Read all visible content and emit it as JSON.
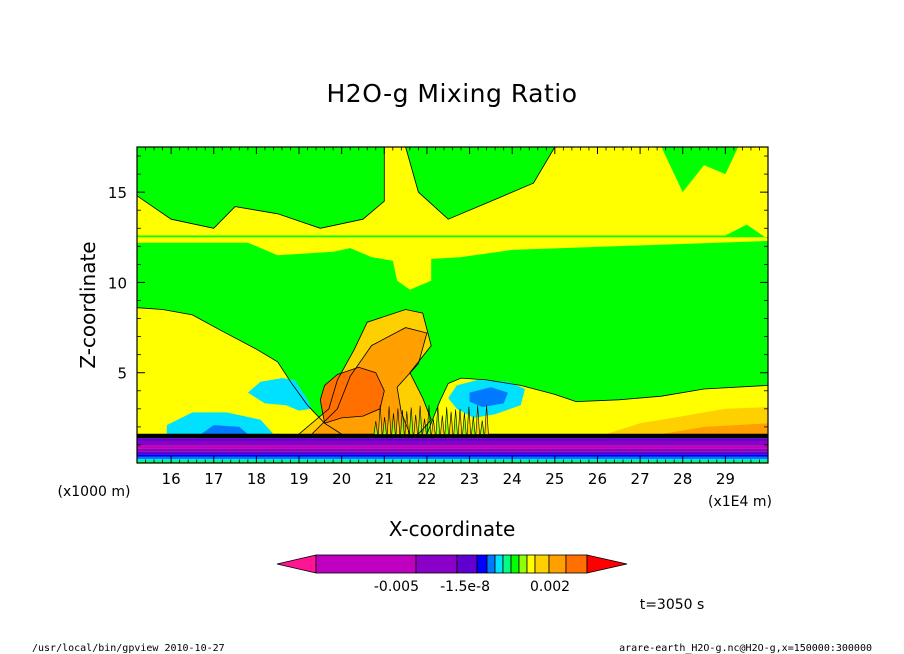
{
  "chart_data": {
    "type": "heatmap",
    "title": "H2O-g Mixing Ratio",
    "xlabel": "X-coordinate",
    "ylabel": "Z-coordinate",
    "x_unit_label": "(x1E4 m)",
    "y_unit_label": "(x1000 m)",
    "xlim": [
      15.2,
      30.0
    ],
    "ylim": [
      0.0,
      17.5
    ],
    "x_ticks": [
      16,
      17,
      18,
      19,
      20,
      21,
      22,
      23,
      24,
      25,
      26,
      27,
      28,
      29
    ],
    "y_ticks": [
      5,
      10,
      15
    ],
    "colorbar": {
      "colors": [
        "#ff1493",
        "#c000c0",
        "#8a00c8",
        "#6000d0",
        "#0000ff",
        "#0078ff",
        "#00e0ff",
        "#00ff80",
        "#00ff00",
        "#90ff00",
        "#ffff00",
        "#ffd000",
        "#ffa000",
        "#ff7000",
        "#ff0000"
      ],
      "tick_labels": [
        "-0.005",
        "-1.5e-8",
        "0.002"
      ]
    },
    "time_label": "t=3050 s",
    "regions": [
      {
        "color": "#ffff00",
        "points": [
          [
            15.2,
            0
          ],
          [
            30,
            0
          ],
          [
            30,
            17.5
          ],
          [
            15.2,
            17.5
          ]
        ]
      },
      {
        "color": "#00ff00",
        "points": [
          [
            15.2,
            17.5
          ],
          [
            15.2,
            14.8
          ],
          [
            16.0,
            13.5
          ],
          [
            17.0,
            13.0
          ],
          [
            17.5,
            14.2
          ],
          [
            18.5,
            13.8
          ],
          [
            19.5,
            13.0
          ],
          [
            20.5,
            13.5
          ],
          [
            21.0,
            14.5
          ],
          [
            21.0,
            17.5
          ]
        ]
      },
      {
        "color": "#00ff00",
        "points": [
          [
            21.5,
            17.5
          ],
          [
            21.8,
            15.0
          ],
          [
            22.5,
            13.5
          ],
          [
            23.5,
            14.5
          ],
          [
            24.5,
            15.5
          ],
          [
            25.0,
            17.5
          ]
        ]
      },
      {
        "color": "#00ff00",
        "points": [
          [
            27.5,
            17.5
          ],
          [
            28.0,
            15.0
          ],
          [
            28.5,
            16.5
          ],
          [
            29.0,
            16.0
          ],
          [
            29.3,
            17.5
          ]
        ]
      },
      {
        "color": "#00ff00",
        "points": [
          [
            15.2,
            12.5
          ],
          [
            30,
            12.5
          ],
          [
            30,
            12.4
          ],
          [
            29.5,
            13.2
          ],
          [
            29.0,
            12.6
          ],
          [
            15.2,
            12.6
          ]
        ]
      },
      {
        "color": "#00ff00",
        "points": [
          [
            15.2,
            12.2
          ],
          [
            17.8,
            12.2
          ],
          [
            18.5,
            11.5
          ],
          [
            19.8,
            11.7
          ],
          [
            20.2,
            11.9
          ],
          [
            20.7,
            11.4
          ],
          [
            21.2,
            11.2
          ],
          [
            21.3,
            10.1
          ],
          [
            21.6,
            9.6
          ],
          [
            22.1,
            10.1
          ],
          [
            22.1,
            11.3
          ],
          [
            22.8,
            11.4
          ],
          [
            24.0,
            11.8
          ],
          [
            30,
            12.3
          ],
          [
            30,
            4.3
          ],
          [
            28.5,
            4.1
          ],
          [
            27.5,
            3.7
          ],
          [
            26.5,
            3.5
          ],
          [
            25.5,
            3.4
          ],
          [
            25.0,
            3.8
          ],
          [
            24.2,
            4.3
          ],
          [
            23.4,
            4.6
          ],
          [
            22.8,
            4.7
          ],
          [
            22.5,
            4.4
          ],
          [
            22.3,
            3.4
          ],
          [
            22.0,
            1.6
          ],
          [
            20.0,
            1.6
          ],
          [
            19.6,
            2.2
          ],
          [
            19.2,
            3.2
          ],
          [
            18.8,
            4.5
          ],
          [
            18.5,
            5.6
          ],
          [
            18.0,
            6.3
          ],
          [
            17.2,
            7.3
          ],
          [
            16.5,
            8.2
          ],
          [
            15.8,
            8.5
          ],
          [
            15.2,
            8.6
          ]
        ]
      },
      {
        "color": "#ffff00",
        "points": [
          [
            15.2,
            3.8
          ],
          [
            16.2,
            3.9
          ],
          [
            16.8,
            3.4
          ],
          [
            16.6,
            3.1
          ],
          [
            15.9,
            3.0
          ],
          [
            15.2,
            3.0
          ]
        ]
      },
      {
        "color": "#ffff00",
        "points": [
          [
            24.5,
            3.2
          ],
          [
            25.4,
            3.0
          ],
          [
            26.5,
            3.2
          ],
          [
            27.5,
            3.5
          ],
          [
            28.5,
            3.9
          ],
          [
            30,
            4.1
          ],
          [
            30,
            1.6
          ],
          [
            24.2,
            1.6
          ]
        ]
      },
      {
        "color": "#ffff00",
        "points": [
          [
            18.5,
            1.6
          ],
          [
            19.8,
            1.6
          ],
          [
            19.4,
            2.2
          ],
          [
            18.9,
            1.9
          ]
        ]
      },
      {
        "color": "#ffd000",
        "points": [
          [
            19.0,
            1.6
          ],
          [
            19.7,
            3.0
          ],
          [
            19.9,
            4.6
          ],
          [
            20.3,
            6.3
          ],
          [
            20.6,
            7.8
          ],
          [
            21.5,
            8.5
          ],
          [
            21.9,
            8.3
          ],
          [
            22.1,
            6.5
          ],
          [
            21.6,
            5.0
          ],
          [
            21.9,
            3.6
          ],
          [
            22.1,
            2.4
          ],
          [
            21.8,
            1.6
          ]
        ]
      },
      {
        "color": "#ffd000",
        "points": [
          [
            26.2,
            1.6
          ],
          [
            27.0,
            2.2
          ],
          [
            28.0,
            2.6
          ],
          [
            29.0,
            3.0
          ],
          [
            30,
            3.1
          ],
          [
            30,
            1.6
          ]
        ]
      },
      {
        "color": "#ffa000",
        "points": [
          [
            19.3,
            1.6
          ],
          [
            19.9,
            3.0
          ],
          [
            20.2,
            4.8
          ],
          [
            20.7,
            6.5
          ],
          [
            21.5,
            7.5
          ],
          [
            22.0,
            7.2
          ],
          [
            21.8,
            5.5
          ],
          [
            21.3,
            4.2
          ],
          [
            21.4,
            2.8
          ],
          [
            21.6,
            1.6
          ]
        ]
      },
      {
        "color": "#ffa000",
        "points": [
          [
            27.5,
            1.6
          ],
          [
            28.5,
            2.0
          ],
          [
            30,
            2.2
          ],
          [
            30,
            1.6
          ]
        ]
      },
      {
        "color": "#ff7000",
        "points": [
          [
            19.6,
            2.2
          ],
          [
            20.0,
            2.5
          ],
          [
            20.5,
            2.6
          ],
          [
            20.9,
            3.0
          ],
          [
            21.0,
            4.0
          ],
          [
            20.8,
            5.0
          ],
          [
            20.4,
            5.3
          ],
          [
            19.9,
            4.9
          ],
          [
            19.6,
            4.3
          ],
          [
            19.5,
            3.5
          ]
        ]
      },
      {
        "color": "#00e0ff",
        "points": [
          [
            18.9,
            4.6
          ],
          [
            19.2,
            3.5
          ],
          [
            19.3,
            3.0
          ],
          [
            19.0,
            2.9
          ],
          [
            18.7,
            3.2
          ],
          [
            18.2,
            3.3
          ],
          [
            17.8,
            3.9
          ],
          [
            18.1,
            4.5
          ],
          [
            18.6,
            4.7
          ]
        ]
      },
      {
        "color": "#00e0ff",
        "points": [
          [
            22.7,
            4.3
          ],
          [
            23.2,
            4.6
          ],
          [
            23.9,
            4.5
          ],
          [
            24.3,
            4.1
          ],
          [
            24.2,
            3.2
          ],
          [
            23.6,
            2.7
          ],
          [
            23.1,
            2.5
          ],
          [
            22.7,
            3.0
          ],
          [
            22.5,
            3.6
          ]
        ]
      },
      {
        "color": "#0078ff",
        "points": [
          [
            23.0,
            3.9
          ],
          [
            23.5,
            4.2
          ],
          [
            23.9,
            3.9
          ],
          [
            23.8,
            3.3
          ],
          [
            23.3,
            3.1
          ],
          [
            23.0,
            3.4
          ]
        ]
      },
      {
        "color": "#00e0ff",
        "points": [
          [
            15.9,
            2.1
          ],
          [
            16.5,
            2.8
          ],
          [
            17.3,
            2.8
          ],
          [
            18.1,
            2.4
          ],
          [
            18.4,
            1.6
          ],
          [
            15.9,
            1.6
          ]
        ]
      },
      {
        "color": "#0078ff",
        "points": [
          [
            16.7,
            1.6
          ],
          [
            17.0,
            2.1
          ],
          [
            17.6,
            2.0
          ],
          [
            17.8,
            1.6
          ]
        ]
      }
    ],
    "bands": [
      {
        "y0": 1.38,
        "y1": 1.62,
        "color": "#000000"
      },
      {
        "y0": 1.22,
        "y1": 1.38,
        "color": "#6000d0"
      },
      {
        "y0": 0.95,
        "y1": 1.22,
        "color": "#8a00c8"
      },
      {
        "y0": 0.78,
        "y1": 0.95,
        "color": "#c000c0"
      },
      {
        "y0": 0.62,
        "y1": 0.78,
        "color": "#8a00c8"
      },
      {
        "y0": 0.48,
        "y1": 0.62,
        "color": "#6000d0"
      },
      {
        "y0": 0.34,
        "y1": 0.48,
        "color": "#0000ff"
      },
      {
        "y0": 0.22,
        "y1": 0.34,
        "color": "#0078ff"
      },
      {
        "y0": 0.1,
        "y1": 0.22,
        "color": "#00e0ff"
      },
      {
        "y0": 0.0,
        "y1": 0.1,
        "color": "#00ff00"
      }
    ],
    "contour_lines": [
      [
        [
          15.2,
          14.8
        ],
        [
          16.0,
          13.5
        ],
        [
          17.0,
          13.0
        ],
        [
          17.5,
          14.2
        ],
        [
          18.5,
          13.8
        ],
        [
          19.5,
          13.0
        ],
        [
          20.5,
          13.5
        ],
        [
          21.0,
          14.5
        ],
        [
          21.0,
          17.5
        ]
      ],
      [
        [
          21.5,
          17.5
        ],
        [
          21.8,
          15.0
        ],
        [
          22.5,
          13.5
        ],
        [
          23.5,
          14.5
        ],
        [
          24.5,
          15.5
        ],
        [
          25.0,
          17.5
        ]
      ],
      [
        [
          19.0,
          1.6
        ],
        [
          19.7,
          3.0
        ],
        [
          19.9,
          4.6
        ],
        [
          20.3,
          6.3
        ],
        [
          20.6,
          7.8
        ],
        [
          21.5,
          8.5
        ],
        [
          21.9,
          8.3
        ],
        [
          22.1,
          6.5
        ],
        [
          21.6,
          5.0
        ],
        [
          21.9,
          3.6
        ],
        [
          22.1,
          2.4
        ],
        [
          21.8,
          1.6
        ]
      ],
      [
        [
          19.3,
          1.6
        ],
        [
          19.9,
          3.0
        ],
        [
          20.2,
          4.8
        ],
        [
          20.7,
          6.5
        ],
        [
          21.5,
          7.5
        ],
        [
          22.0,
          7.2
        ],
        [
          21.8,
          5.5
        ],
        [
          21.3,
          4.2
        ],
        [
          21.4,
          2.8
        ],
        [
          21.6,
          1.6
        ]
      ],
      [
        [
          19.6,
          2.2
        ],
        [
          20.0,
          2.5
        ],
        [
          20.5,
          2.6
        ],
        [
          20.9,
          3.0
        ],
        [
          21.0,
          4.0
        ],
        [
          20.8,
          5.0
        ],
        [
          20.4,
          5.3
        ],
        [
          19.9,
          4.9
        ],
        [
          19.6,
          4.3
        ],
        [
          19.5,
          3.5
        ],
        [
          19.6,
          2.2
        ]
      ],
      [
        [
          15.2,
          8.6
        ],
        [
          15.8,
          8.5
        ],
        [
          16.5,
          8.2
        ],
        [
          17.2,
          7.3
        ],
        [
          18.0,
          6.3
        ],
        [
          18.5,
          5.6
        ],
        [
          18.8,
          4.5
        ],
        [
          19.2,
          3.2
        ],
        [
          19.6,
          2.2
        ],
        [
          20.0,
          1.6
        ]
      ],
      [
        [
          22.0,
          1.6
        ],
        [
          22.3,
          3.4
        ],
        [
          22.5,
          4.4
        ],
        [
          22.8,
          4.7
        ],
        [
          23.4,
          4.6
        ],
        [
          24.2,
          4.3
        ],
        [
          25.0,
          3.8
        ],
        [
          25.5,
          3.4
        ],
        [
          26.5,
          3.5
        ],
        [
          27.5,
          3.7
        ],
        [
          28.5,
          4.1
        ],
        [
          30,
          4.3
        ]
      ]
    ],
    "hatch_zone": {
      "x0": 20.8,
      "x1": 23.4,
      "y0": 1.6,
      "y1": 3.2
    }
  },
  "footer": {
    "left": "/usr/local/bin/gpview  2010-10-27",
    "right": "arare-earth_H2O-g.nc@H2O-g,x=150000:300000"
  }
}
